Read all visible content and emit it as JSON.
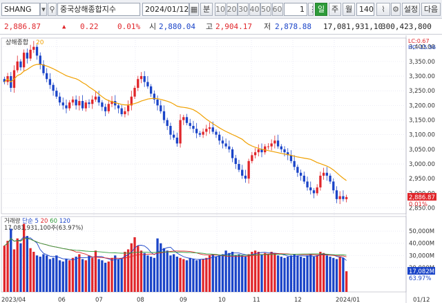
{
  "toolbar": {
    "symbol": "SHANG",
    "name": "중국상해종합지수",
    "date": "2024/01/12",
    "unit_label": "분",
    "intervals": [
      "10",
      "20",
      "30",
      "40",
      "50",
      "60"
    ],
    "one": "1",
    "periods": [
      "일",
      "주",
      "월"
    ],
    "count": "140",
    "settings_label": "설정",
    "next_label": "다음"
  },
  "quote": {
    "price": "2,886.87",
    "arrow": "▲",
    "change": "0.22",
    "change_pct": "0.01%",
    "open_label": "시",
    "open": "2,880.04",
    "high_label": "고",
    "high": "2,904.17",
    "low_label": "저",
    "low": "2,878.88",
    "volume": "17,081,931,10",
    "amount": "300,423,800"
  },
  "price_panel": {
    "legend_name": "상해종합",
    "legend_ma": "20",
    "lc_label": "LC:0.67",
    "hc_label": "HC:-15.56",
    "y_ticks": [
      "3,400.00",
      "3,350.00",
      "3,300.00",
      "3,250.00",
      "3,200.00",
      "3,150.00",
      "3,100.00",
      "3,050.00",
      "3,000.00",
      "2,950.00",
      "2,900.00",
      "2,850.00"
    ],
    "last_price_tag": "2,886.87",
    "last_pct_tag": "0.01%",
    "colors": {
      "up": "#e0262b",
      "down": "#1a44c8",
      "ma": "#f0a000"
    }
  },
  "volume_panel": {
    "legend_name": "거래량",
    "legend_simple": "단순",
    "ma_periods": [
      "5",
      "20",
      "60",
      "120"
    ],
    "summary": "17,081,931,100주(63.97%)",
    "y_ticks": [
      "50,000M",
      "40,000M",
      "30,000M",
      "20,000M"
    ],
    "last_vol_tag": "17,082M",
    "last_pct_tag": "63.97%",
    "ma_colors": [
      "#1a44c8",
      "#e0262b",
      "#2e9b3a",
      "#1a44c8"
    ]
  },
  "x_axis": {
    "labels": [
      "2023/04",
      "06",
      "07",
      "08",
      "09",
      "10",
      "11",
      "12",
      "2024/01",
      "01/12"
    ]
  },
  "chart_data": {
    "type": "candlestick",
    "start_month": "2023/04",
    "end_date": "2024/01/12",
    "close": [
      3280,
      3300,
      3260,
      3320,
      3350,
      3330,
      3380,
      3360,
      3390,
      3400,
      3370,
      3340,
      3310,
      3290,
      3270,
      3250,
      3230,
      3210,
      3200,
      3190,
      3210,
      3220,
      3200,
      3215,
      3190,
      3210,
      3205,
      3220,
      3230,
      3210,
      3195,
      3180,
      3205,
      3215,
      3200,
      3190,
      3170,
      3180,
      3200,
      3230,
      3260,
      3290,
      3300,
      3280,
      3265,
      3240,
      3220,
      3200,
      3180,
      3150,
      3130,
      3100,
      3090,
      3070,
      3150,
      3160,
      3140,
      3130,
      3120,
      3105,
      3100,
      3110,
      3120,
      3125,
      3110,
      3100,
      3080,
      3070,
      3060,
      3050,
      3020,
      3000,
      2980,
      2960,
      2950,
      3010,
      3030,
      3040,
      3050,
      3040,
      3060,
      3060,
      3070,
      3080,
      3060,
      3050,
      3040,
      3030,
      3010,
      2990,
      2970,
      2960,
      2940,
      2920,
      2910,
      2900,
      2920,
      2960,
      2970,
      2960,
      2940,
      2910,
      2880,
      2890,
      2880,
      2887
    ],
    "volume_m": [
      38,
      42,
      52,
      35,
      44,
      40,
      56,
      46,
      36,
      33,
      30,
      29,
      31,
      30,
      27,
      28,
      30,
      26,
      25,
      27,
      26,
      28,
      29,
      31,
      27,
      26,
      30,
      28,
      34,
      27,
      26,
      24,
      25,
      28,
      30,
      27,
      28,
      33,
      35,
      40,
      45,
      38,
      34,
      32,
      30,
      29,
      28,
      44,
      40,
      36,
      34,
      30,
      31,
      29,
      28,
      27,
      26,
      28,
      27,
      26,
      27,
      27,
      28,
      30,
      31,
      29,
      30,
      31,
      34,
      32,
      33,
      30,
      31,
      30,
      29,
      31,
      33,
      34,
      33,
      31,
      32,
      31,
      33,
      32,
      30,
      29,
      28,
      29,
      30,
      31,
      30,
      29,
      28,
      30,
      31,
      29,
      30,
      33,
      32,
      30,
      29,
      28,
      27,
      29,
      28,
      17
    ]
  }
}
